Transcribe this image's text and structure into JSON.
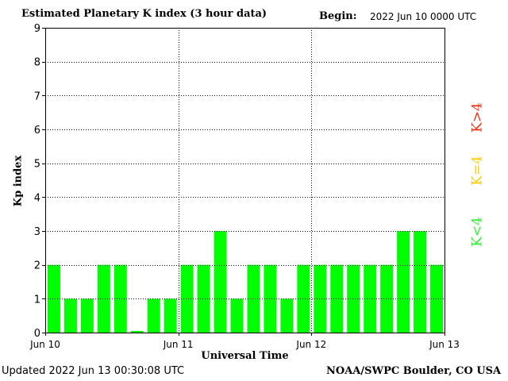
{
  "header": {
    "title": "Estimated Planetary K index (3 hour data)",
    "begin_label": "Begin:",
    "begin_value": "2022 Jun 10 0000 UTC"
  },
  "footer": {
    "updated": "Updated 2022 Jun 13 00:30:08 UTC",
    "credit": "NOAA/SWPC Boulder, CO USA"
  },
  "legend": [
    {
      "label": "K<4",
      "color": "#33ee33"
    },
    {
      "label": "K=4",
      "color": "#ffcc00"
    },
    {
      "label": "K>4",
      "color": "#ee3311"
    }
  ],
  "colors": {
    "bar": "#00ff00",
    "grid": "#000000"
  },
  "chart_data": {
    "type": "bar",
    "title": "Estimated Planetary K index (3 hour data)",
    "xlabel": "Universal Time",
    "ylabel": "Kp index",
    "ylim": [
      0,
      9
    ],
    "y_ticks": [
      0,
      1,
      2,
      3,
      4,
      5,
      6,
      7,
      8,
      9
    ],
    "x_tick_labels": [
      "Jun 10",
      "Jun 11",
      "Jun 12",
      "Jun 13"
    ],
    "grid": true,
    "interval_hours": 3,
    "values": [
      2,
      1,
      1,
      2,
      2,
      0.05,
      1,
      1,
      2,
      2,
      3,
      1,
      2,
      2,
      1,
      2,
      2,
      2,
      2,
      2,
      2,
      3,
      3,
      2
    ]
  }
}
